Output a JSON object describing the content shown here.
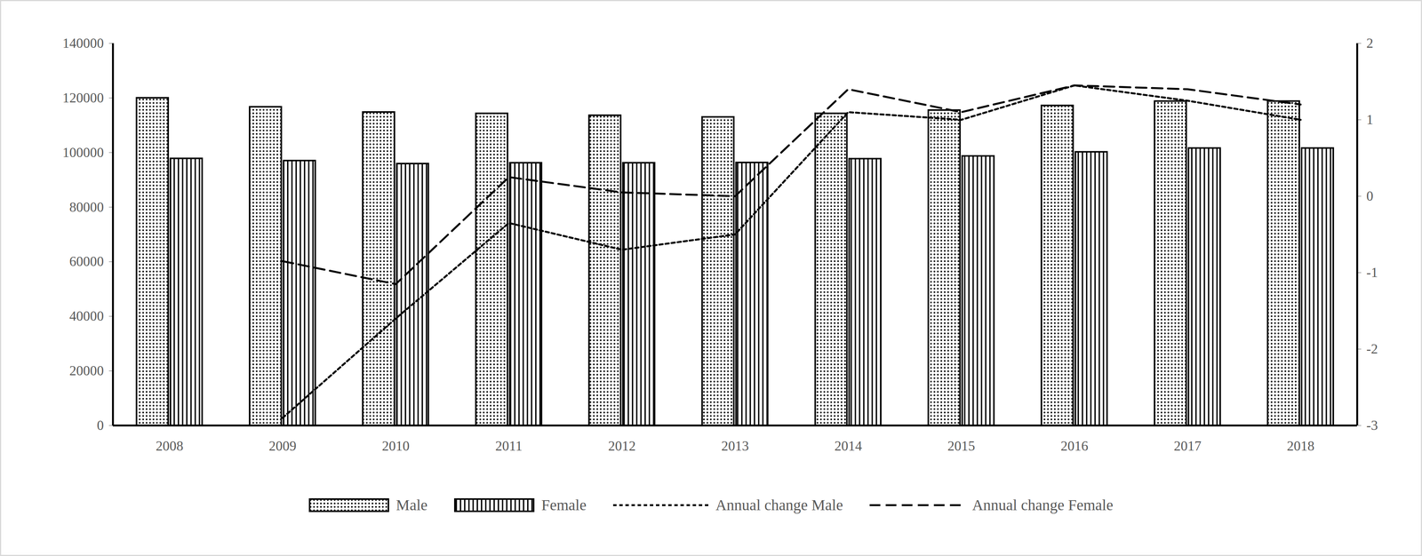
{
  "chart_data": {
    "type": "bar",
    "categories": [
      "2008",
      "2009",
      "2010",
      "2011",
      "2012",
      "2013",
      "2014",
      "2015",
      "2016",
      "2017",
      "2018"
    ],
    "series": [
      {
        "name": "Male",
        "color": "#000000",
        "values": [
          120000,
          116700,
          114800,
          114300,
          113600,
          113000,
          114300,
          115500,
          117200,
          118800,
          118800
        ]
      },
      {
        "name": "Female",
        "color": "#000000",
        "values": [
          97800,
          97000,
          95900,
          96200,
          96200,
          96300,
          97700,
          98700,
          100200,
          101600,
          101600
        ]
      },
      {
        "name": "Annual change Male",
        "type": "line",
        "axis": "y2",
        "color": "#000000",
        "line_style": "dotted",
        "values": [
          null,
          -2.9,
          -1.6,
          -0.35,
          -0.7,
          -0.5,
          1.1,
          1.0,
          1.45,
          1.25,
          1.0
        ]
      },
      {
        "name": "Annual change Female",
        "type": "line",
        "axis": "y2",
        "color": "#000000",
        "line_style": "dashed",
        "values": [
          null,
          -0.85,
          -1.15,
          0.25,
          0.05,
          0.0,
          1.4,
          1.1,
          1.45,
          1.4,
          1.2
        ]
      }
    ],
    "ylim": [
      0,
      140000
    ],
    "yticks": [
      0,
      20000,
      40000,
      60000,
      80000,
      100000,
      120000,
      140000
    ],
    "y2lim": [
      -3,
      2
    ],
    "y2ticks": [
      -3,
      -2,
      -1,
      0,
      1,
      2
    ],
    "grid": false,
    "legend": "bottom"
  }
}
